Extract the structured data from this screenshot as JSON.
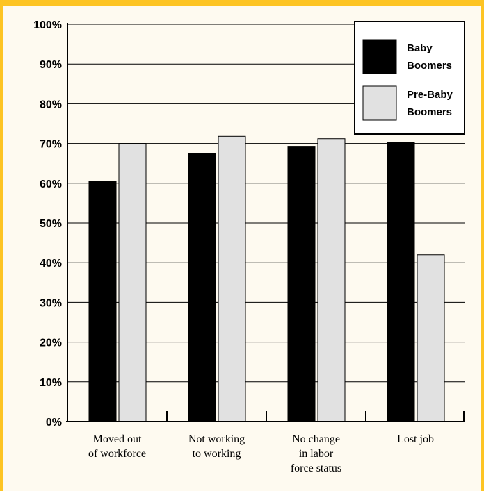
{
  "colors": {
    "frame": "#fdc423",
    "background": "#fefaf0",
    "baby_boomers": "#000000",
    "pre_baby_boomers": "#e1e1e1"
  },
  "chart_data": {
    "type": "bar",
    "title": "",
    "xlabel": "",
    "ylabel": "",
    "ylim": [
      0,
      100
    ],
    "y_unit": "%",
    "grid": true,
    "legend_position": "top-right",
    "y_ticks": [
      "0%",
      "10%",
      "20%",
      "30%",
      "40%",
      "50%",
      "60%",
      "70%",
      "80%",
      "90%",
      "100%"
    ],
    "categories": [
      [
        "Moved out",
        "of workforce"
      ],
      [
        "Not working",
        "to working"
      ],
      [
        "No change",
        "in labor",
        "force status"
      ],
      [
        "Lost job"
      ]
    ],
    "series": [
      {
        "name": [
          "Baby",
          "Boomers"
        ],
        "color": "#000000",
        "values": [
          60.5,
          67.5,
          69.3,
          70.2
        ]
      },
      {
        "name": [
          "Pre-Baby",
          "Boomers"
        ],
        "color": "#e1e1e1",
        "values": [
          70.0,
          71.8,
          71.2,
          42.0
        ]
      }
    ]
  }
}
